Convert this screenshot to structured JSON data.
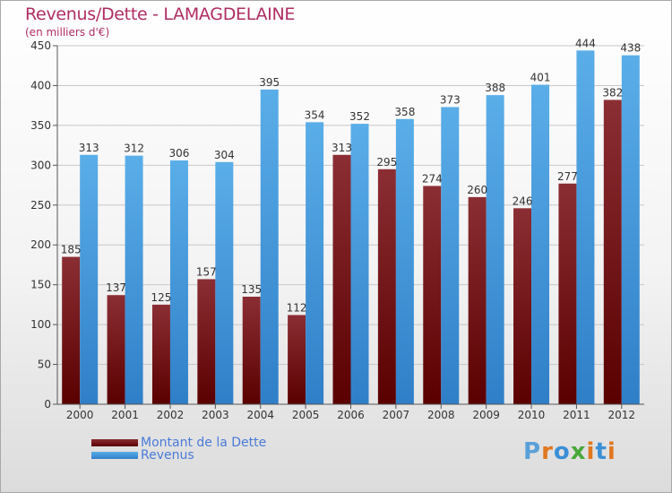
{
  "header": {
    "title": "Revenus/Dette - LAMAGDELAINE",
    "subtitle": "(en milliers d'€)"
  },
  "legend": [
    {
      "label": "Montant de la Dette",
      "color": "#6e0a0a"
    },
    {
      "label": "Revenus",
      "color": "#3f95df"
    }
  ],
  "logo": {
    "text": "Proxiti",
    "letter_colors": [
      "#5aa0d8",
      "#e07820",
      "#3b8fd6",
      "#48a83a",
      "#e07820",
      "#3b8fd6",
      "#e07820"
    ]
  },
  "chart_data": {
    "type": "bar",
    "title": "Revenus/Dette - LAMAGDELAINE",
    "subtitle": "(en milliers d'€)",
    "categories": [
      "2000",
      "2001",
      "2002",
      "2003",
      "2004",
      "2005",
      "2006",
      "2007",
      "2008",
      "2009",
      "2010",
      "2011",
      "2012"
    ],
    "series": [
      {
        "name": "Montant de la Dette",
        "color_top": "#8b2e34",
        "color_bottom": "#5a0000",
        "values": [
          185,
          137,
          125,
          157,
          135,
          112,
          313,
          295,
          274,
          260,
          246,
          277,
          382
        ]
      },
      {
        "name": "Revenus",
        "color_top": "#5aaee8",
        "color_bottom": "#2f7fc8",
        "values": [
          313,
          312,
          306,
          304,
          395,
          354,
          352,
          358,
          373,
          388,
          401,
          444,
          438
        ]
      }
    ],
    "ylim": [
      0,
      450
    ],
    "yticks": [
      0,
      50,
      100,
      150,
      200,
      250,
      300,
      350,
      400,
      450
    ],
    "grid": true,
    "legend_position": "bottom-left"
  }
}
